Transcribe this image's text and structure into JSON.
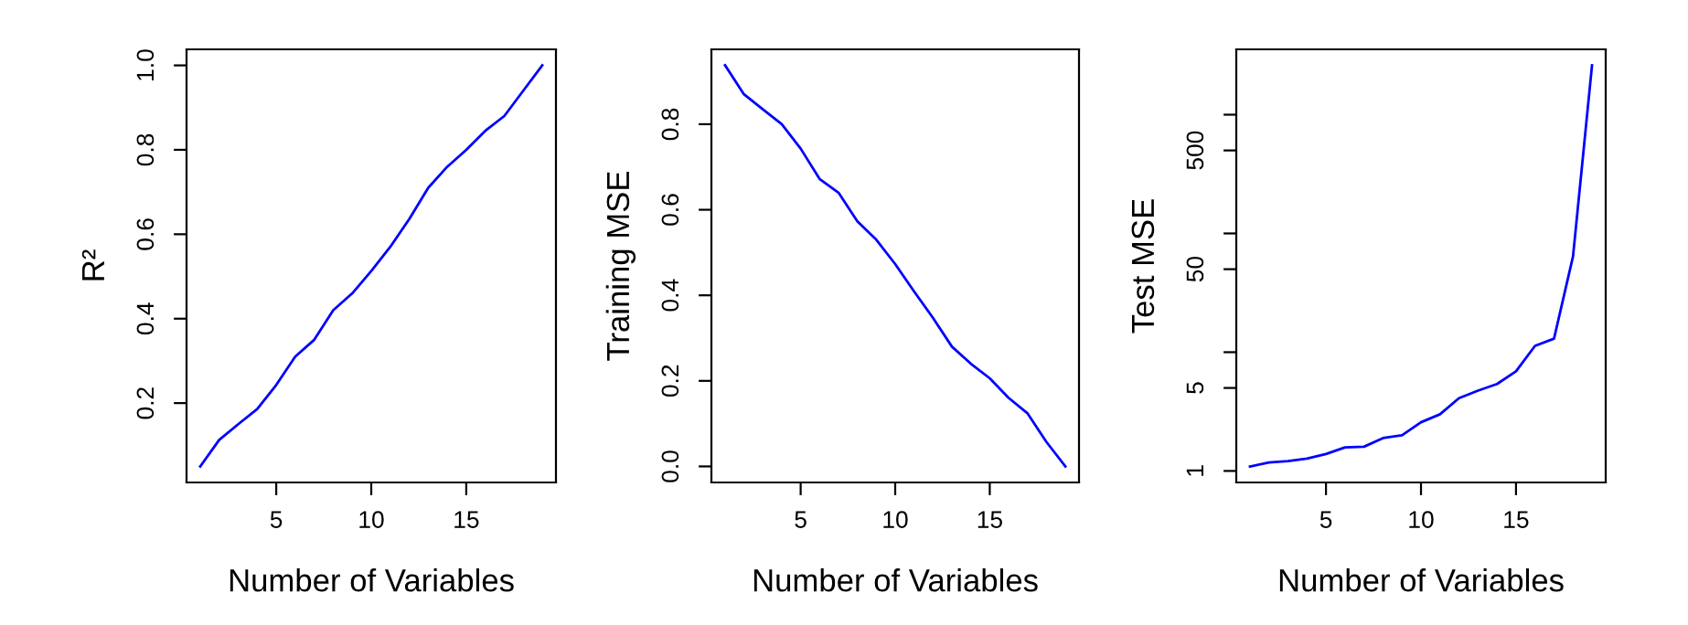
{
  "chart_data": [
    {
      "type": "line",
      "xlabel": "Number of Variables",
      "ylabel": "R²",
      "x": [
        1,
        2,
        3,
        4,
        5,
        6,
        7,
        8,
        9,
        10,
        11,
        12,
        13,
        14,
        15,
        16,
        17,
        18,
        19
      ],
      "series": [
        {
          "color": "#0000ff",
          "values": [
            0.05,
            0.113,
            0.15,
            0.186,
            0.243,
            0.31,
            0.35,
            0.42,
            0.46,
            0.513,
            0.57,
            0.636,
            0.71,
            0.76,
            0.8,
            0.845,
            0.88,
            0.94,
            1.0
          ]
        }
      ],
      "xlim": [
        0.28,
        19.72
      ],
      "xticks": [
        5,
        10,
        15
      ],
      "ylim": [
        0.012,
        1.038
      ],
      "yticks": [
        0.2,
        0.4,
        0.6,
        0.8,
        {
          "value": 1,
          "label": "1.0"
        }
      ],
      "grid": false,
      "legend": false
    },
    {
      "type": "line",
      "xlabel": "Number of Variables",
      "ylabel": "Training MSE",
      "x": [
        1,
        2,
        3,
        4,
        5,
        6,
        7,
        8,
        9,
        10,
        11,
        12,
        13,
        14,
        15,
        16,
        17,
        18,
        19
      ],
      "series": [
        {
          "color": "#0000ff",
          "values": [
            0.938,
            0.87,
            0.835,
            0.8,
            0.743,
            0.672,
            0.64,
            0.573,
            0.53,
            0.473,
            0.409,
            0.347,
            0.28,
            0.24,
            0.206,
            0.16,
            0.124,
            0.057,
            0.0
          ]
        }
      ],
      "xlim": [
        0.28,
        19.72
      ],
      "xticks": [
        5,
        10,
        15
      ],
      "ylim": [
        -0.0375,
        0.975
      ],
      "yticks": [
        {
          "value": 0,
          "label": "0.0"
        },
        0.2,
        0.4,
        0.6,
        0.8
      ],
      "grid": false,
      "legend": false
    },
    {
      "type": "line",
      "xlabel": "Number of Variables",
      "ylabel": "Test MSE",
      "log": "y",
      "x": [
        1,
        2,
        3,
        4,
        5,
        6,
        7,
        8,
        9,
        10,
        11,
        12,
        13,
        14,
        15,
        16,
        17,
        18,
        19
      ],
      "series": [
        {
          "color": "#0000ff",
          "values": [
            1.09,
            1.18,
            1.21,
            1.27,
            1.39,
            1.58,
            1.6,
            1.89,
            2.0,
            2.57,
            3.0,
            4.1,
            4.75,
            5.4,
            6.9,
            11.3,
            13.0,
            64,
            2600
          ]
        }
      ],
      "xlim": [
        0.28,
        19.72
      ],
      "xticks": [
        5,
        10,
        15
      ],
      "ylim": [
        0.8,
        3550
      ],
      "yticks": [
        1,
        5,
        {
          "value": 10,
          "label": null
        },
        50,
        {
          "value": 100,
          "label": null
        },
        500,
        {
          "value": 1000,
          "label": null
        }
      ],
      "grid": false,
      "legend": false
    }
  ]
}
